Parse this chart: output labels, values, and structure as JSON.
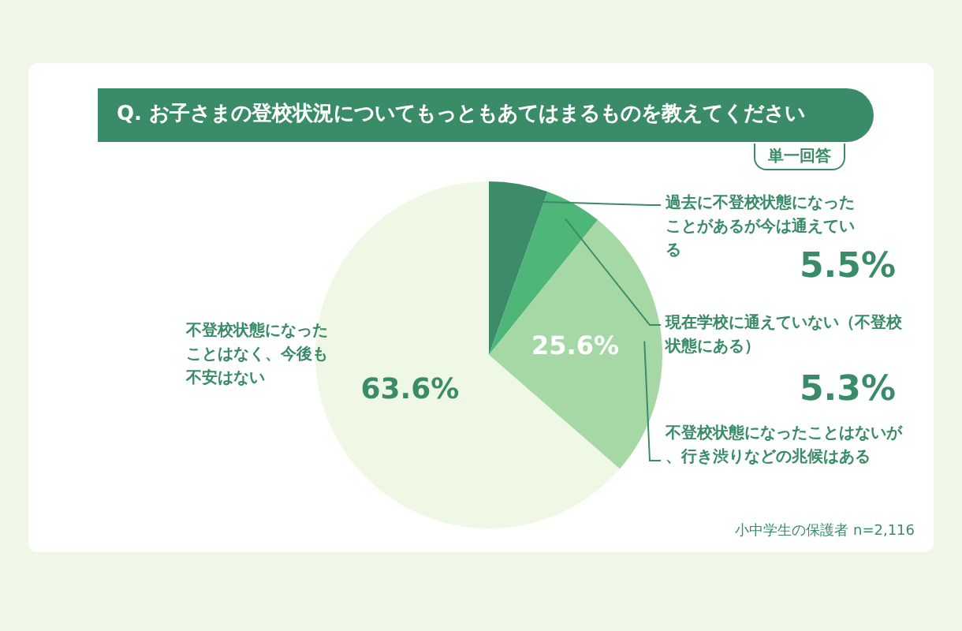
{
  "chart_data": {
    "type": "pie",
    "title": "Q. お子さまの登校状況についてもっともあてはまるものを教えてください",
    "subtitle": "単一回答",
    "categories": [
      "過去に不登校状態になったことがあるが今は通えている",
      "現在学校に通えていない（不登校状態にある）",
      "不登校状態になったことはないが、行き渋りなどの兆候はある",
      "不登校状態になったことはなく、今後も不安はない"
    ],
    "values": [
      5.5,
      5.3,
      25.6,
      63.6
    ],
    "value_labels": [
      "5.5%",
      "5.3%",
      "25.6%",
      "63.6%"
    ],
    "colors": [
      "#3d8c69",
      "#4fb67a",
      "#a6d8a6",
      "#eef8e4"
    ],
    "legend": false,
    "annotations": [
      "小中学生の保護者 n=2,116"
    ]
  }
}
